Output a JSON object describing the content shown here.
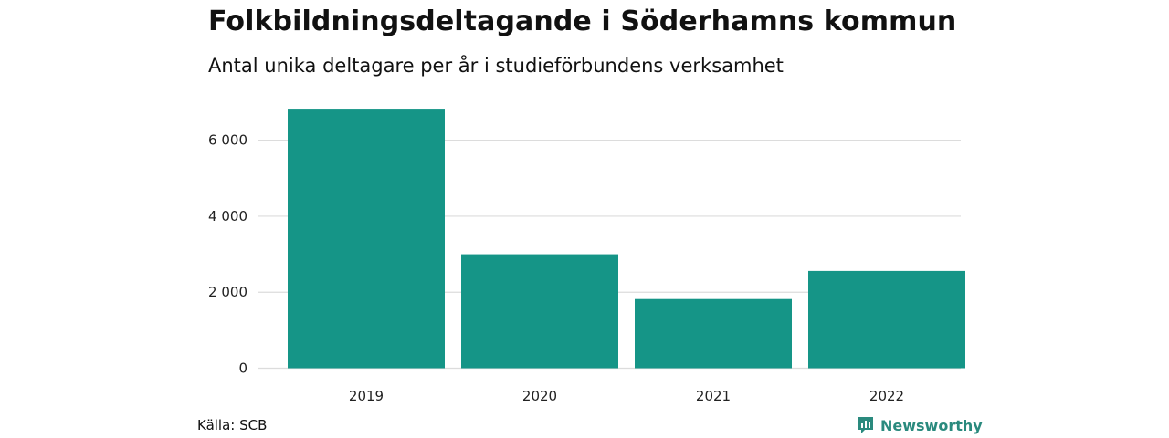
{
  "chart_data": {
    "type": "bar",
    "title": "Folkbildningsdeltagande i Söderhamns kommun",
    "subtitle": "Antal unika deltagare per år i studieförbundens verksamhet",
    "categories": [
      "2019",
      "2020",
      "2021",
      "2022"
    ],
    "values": [
      6830,
      3000,
      1820,
      2560
    ],
    "ylim": [
      0,
      7000
    ],
    "yticks": [
      0,
      2000,
      4000,
      6000
    ],
    "ytick_labels": [
      "0",
      "2 000",
      "4 000",
      "6 000"
    ],
    "xlabel": "",
    "ylabel": "",
    "grid": true,
    "bar_color": "#159587"
  },
  "footer": {
    "source": "Källa: SCB",
    "brand": "Newsworthy",
    "brand_color": "#2a8a7e",
    "brand_icon": "newsworthy-logo-icon"
  }
}
